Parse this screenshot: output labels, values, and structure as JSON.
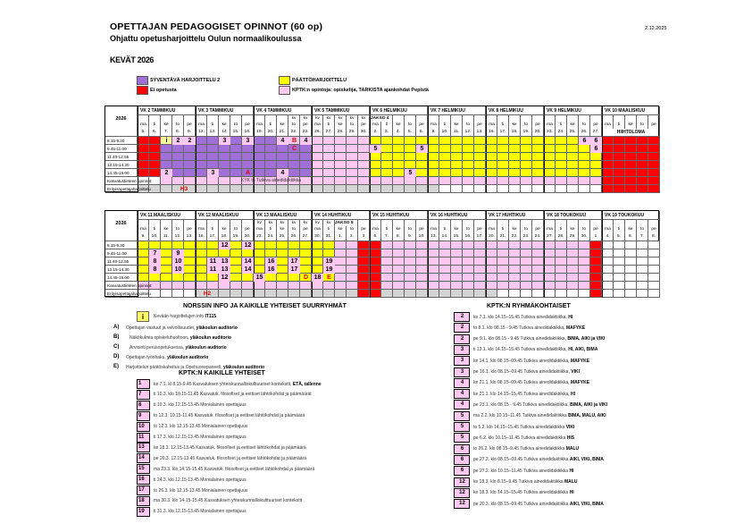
{
  "header": {
    "title": "OPETTAJAN PEDAGOGISET OPINNOT (60 op)",
    "subtitle": "Ohjattu opetusharjoittelu Oulun normaalikoulussa",
    "term": "KEVÄT 2026",
    "date": "2.12.2025"
  },
  "colors": {
    "r": "#ff0000",
    "p": "#a070d8",
    "y": "#ffff00",
    "Y": "#ffff99",
    "k": "#ffc8f0",
    "w": "#ffffff",
    "g": "#d4d4d4"
  },
  "legend": [
    {
      "color": "#a070d8",
      "label": "SYVENTÄVÄ HARJOITTELU 2"
    },
    {
      "color": "#ff0000",
      "label": "Ei opetusta"
    },
    {
      "color": "#ffff00",
      "label": "PÄÄTTÖHARJOITTELU"
    },
    {
      "color": "#ffc8f0",
      "label": "KPTK:n opintoja: opiskelija, TARKISTA ajankohdat Pepistä"
    }
  ],
  "times": [
    "8.15-9.30",
    "9.45-11.00",
    "11.40-12.55",
    "13.15-14.30",
    "14.45-16.00"
  ],
  "row_labels": [
    "Kasvatustieteen opinnot:",
    "Erityisopettajaharjoittelu"
  ],
  "calendars": [
    {
      "year": "2026",
      "weeks": [
        {
          "label": "VK 2 TAMMIKUU",
          "days": [
            "ma",
            "ti",
            "ke",
            "to",
            "pe"
          ],
          "dates": [
            "5.",
            "6.",
            "7.",
            "8.",
            "9."
          ],
          "kv": [
            "",
            "",
            "",
            "",
            ""
          ]
        },
        {
          "label": "VK 3 TAMMIKUU",
          "days": [
            "ma",
            "ti",
            "ke",
            "to",
            "pe"
          ],
          "dates": [
            "12.",
            "13.",
            "14",
            "15.",
            "16."
          ],
          "kv": [
            "",
            "",
            "",
            "",
            ""
          ]
        },
        {
          "label": "VK 4 TAMMIKUU",
          "days": [
            "ma",
            "ti",
            "ke",
            "to",
            "pe"
          ],
          "dates": [
            "19.",
            "20.",
            "21.",
            "22.",
            "23."
          ],
          "kv": [
            "",
            "",
            "",
            "kv",
            "kv"
          ]
        },
        {
          "label": "VK 5 TAMMIKUU",
          "days": [
            "ma",
            "ti",
            "ke",
            "to",
            "pe"
          ],
          "dates": [
            "26.",
            "27.",
            "28.",
            "29.",
            "30."
          ],
          "kv": [
            "kv",
            "kv",
            "kv",
            "kv",
            "kv"
          ]
        },
        {
          "label": "VK 6 HELMIKUU",
          "days": [
            "ma",
            "ti",
            "ke",
            "to",
            "pe"
          ],
          "dates": [
            "2.",
            "3.",
            "4.",
            "5.",
            "6."
          ],
          "kv": [
            "JAKSO 4",
            "",
            "",
            "",
            ""
          ]
        },
        {
          "label": "VK 7 HELMIKUU",
          "days": [
            "ma",
            "ti",
            "ke",
            "to",
            "pe"
          ],
          "dates": [
            "9.",
            "10.",
            "11.",
            "12.",
            "13."
          ],
          "kv": [
            "",
            "",
            "",
            "",
            ""
          ]
        },
        {
          "label": "VK 8 HELMIKUU",
          "days": [
            "ma",
            "ti",
            "ke",
            "to",
            "pe"
          ],
          "dates": [
            "16.",
            "17.",
            "18.",
            "19.",
            "20."
          ],
          "kv": [
            "",
            "",
            "",
            "",
            ""
          ]
        },
        {
          "label": "VK 9 HELMIKUU",
          "days": [
            "ma",
            "ti",
            "ke",
            "to",
            "pe"
          ],
          "dates": [
            "23.",
            "24.",
            "25.",
            "26.",
            "27."
          ],
          "kv": [
            "",
            "",
            "",
            "",
            ""
          ]
        },
        {
          "label": "VK 10 MAALISKUU",
          "days": [
            "ma",
            "ti",
            "ke",
            "to",
            "pe"
          ],
          "dates": [],
          "banner": "HIIHTOLOMA",
          "kv": [
            "",
            "",
            "",
            "",
            ""
          ]
        }
      ],
      "rows": [
        "rrYkkppkpkppkkkkkkkkyyyyyyyyyyyyyyyyyykkrrrrr",
        "rrpppppppppppppkkkkkkyyykyyyyyyyyyyyyyykrrrrr",
        "rrpppppppppppppkkkkkyyyyyyyyyyyyyyyyyyyyrrrrr",
        "rrpppppppppppppkkkkkyyyyyyyyyyyyyyyyyyyyrrrrr",
        "rrkpppkpppppkppkkkkkyyykyyyyyyyyyyyyyyyyrrrrr",
        "wwkkkkkkkkkkkkkkkkkkkkkkkkkkkkkkkkkkkkkkrrrrr",
        "ggggggggggggggggggggggggggwwwwwwwwwwwwwwrrrrr"
      ],
      "marks": [
        {
          "r": 0,
          "c": 2,
          "t": "i",
          "info": true
        },
        {
          "r": 0,
          "c": 3,
          "t": "2"
        },
        {
          "r": 0,
          "c": 4,
          "t": "2"
        },
        {
          "r": 0,
          "c": 7,
          "t": "3"
        },
        {
          "r": 0,
          "c": 9,
          "t": "3"
        },
        {
          "r": 0,
          "c": 12,
          "t": "4"
        },
        {
          "r": 0,
          "c": 13,
          "t": "B",
          "red": true
        },
        {
          "r": 0,
          "c": 14,
          "t": "4"
        },
        {
          "r": 0,
          "c": 38,
          "t": "6"
        },
        {
          "r": 0,
          "c": 39,
          "t": "6"
        },
        {
          "r": 1,
          "c": 13,
          "t": "C",
          "red": true
        },
        {
          "r": 1,
          "c": 20,
          "t": "5"
        },
        {
          "r": 1,
          "c": 24,
          "t": "5"
        },
        {
          "r": 1,
          "c": 39,
          "t": "6"
        },
        {
          "r": 4,
          "c": 2,
          "t": "2"
        },
        {
          "r": 4,
          "c": 6,
          "t": "3"
        },
        {
          "r": 4,
          "c": 9,
          "t": "A",
          "red": true
        },
        {
          "r": 4,
          "c": 12,
          "t": "4"
        },
        {
          "r": 4,
          "c": 23,
          "t": "5"
        }
      ],
      "spans": [
        {
          "r": 5,
          "c0": 3,
          "c1": 19,
          "t": "KYK ta Tutkiva ainedidaktiikka"
        },
        {
          "r": 6,
          "c0": 3,
          "c1": 4,
          "t": "H3",
          "red": true
        }
      ]
    },
    {
      "year": "2026",
      "weeks": [
        {
          "label": "VK 11 MAALISKUU",
          "days": [
            "ma",
            "ti",
            "ke",
            "to",
            "pe"
          ],
          "dates": [
            "9.",
            "10.",
            "11.",
            "12.",
            "13."
          ],
          "kv": [
            "",
            "",
            "",
            "",
            ""
          ]
        },
        {
          "label": "VK 12 MAALISKUU",
          "days": [
            "ma",
            "ti",
            "ke",
            "to",
            "pe"
          ],
          "dates": [
            "16.",
            "17.",
            "18.",
            "19.",
            "20."
          ],
          "kv": [
            "",
            "",
            "",
            "",
            ""
          ]
        },
        {
          "label": "VK 13 MAALISKUU",
          "days": [
            "ma",
            "ti",
            "ke",
            "to",
            "pe"
          ],
          "dates": [
            "23.",
            "24.",
            "25.",
            "26.",
            "27."
          ],
          "kv": [
            "kv",
            "kv",
            "kv",
            "kv",
            "kv"
          ]
        },
        {
          "label": "VK 14 HUHTIKUU",
          "days": [
            "ma",
            "ti",
            "ke",
            "to",
            "pe"
          ],
          "dates": [
            "30.",
            "31.",
            "1.",
            "2.",
            "3"
          ],
          "kv": [
            "kv",
            "kv",
            "JAKSO 5",
            "",
            ""
          ]
        },
        {
          "label": "VK 15 HUHTIKUU",
          "days": [
            "ma",
            "ti",
            "ke",
            "to",
            "pe"
          ],
          "dates": [
            "6.",
            "7.",
            "8.",
            "9.",
            "10."
          ],
          "kv": [
            "",
            "",
            "",
            "",
            ""
          ]
        },
        {
          "label": "VK 16 HUHTIKUU",
          "days": [
            "ma",
            "ti",
            "ke",
            "to",
            "pe"
          ],
          "dates": [
            "13.",
            "14.",
            "15.",
            "16.",
            "17."
          ],
          "kv": [
            "",
            "",
            "",
            "",
            ""
          ]
        },
        {
          "label": "VK 17 HUHTIKUU",
          "days": [
            "ma",
            "ti",
            "ke",
            "to",
            "pe"
          ],
          "dates": [
            "20.",
            "21.",
            "22.",
            "23.",
            "24."
          ],
          "kv": [
            "",
            "",
            "",
            "",
            ""
          ]
        },
        {
          "label": "VK 18 TOUKOKUU",
          "days": [
            "ma",
            "ti",
            "ke",
            "to",
            "pe"
          ],
          "dates": [
            "27.",
            "28.",
            "29.",
            "30.",
            "1"
          ],
          "kv": [
            "",
            "",
            "",
            "",
            ""
          ]
        },
        {
          "label": "VK 19 TOUKOKUU",
          "days": [
            "ma",
            "ti",
            "ke",
            "to",
            "pe"
          ],
          "dates": [
            "4.",
            "5.",
            "6.",
            "7.",
            "8."
          ],
          "kv": [
            "",
            "",
            "",
            "",
            ""
          ]
        }
      ],
      "rows": [
        "yyyyyyykykyyyyyyykkrrkkkkkkkkkkkkkkkkkkrwwwww",
        "ykykyyyyyyyyyyyyykkrrkkkkkkkkkkkkkkkkkkrwwwww",
        "ykykyykkykykykyykkkrrkkkkkkkkkkkkkkkkkkrwwwww",
        "ykykyykkykykykyykkkrrkkkkkkkkkkkkkkkkkkrwwwww",
        "yyyyyyykyykyyyykykkrrkkkkkkkkkkkkkkkkkkrwwwww",
        "kkkkkkkkkkkkkkkkkkkrrkkkkkkkkkkkkkkkkkkrwwwww",
        "wwwwwggggggggggggggrrggggggggggwwwwwwwwrwwwww"
      ],
      "marks": [
        {
          "r": 0,
          "c": 7,
          "t": "12"
        },
        {
          "r": 0,
          "c": 9,
          "t": "12"
        },
        {
          "r": 1,
          "c": 1,
          "t": "7"
        },
        {
          "r": 1,
          "c": 3,
          "t": "9"
        },
        {
          "r": 2,
          "c": 1,
          "t": "8"
        },
        {
          "r": 2,
          "c": 3,
          "t": "10"
        },
        {
          "r": 2,
          "c": 6,
          "t": "11"
        },
        {
          "r": 2,
          "c": 7,
          "t": "13"
        },
        {
          "r": 2,
          "c": 9,
          "t": "14"
        },
        {
          "r": 2,
          "c": 11,
          "t": "16"
        },
        {
          "r": 2,
          "c": 13,
          "t": "17"
        },
        {
          "r": 2,
          "c": 16,
          "t": "19"
        },
        {
          "r": 3,
          "c": 1,
          "t": "8"
        },
        {
          "r": 3,
          "c": 3,
          "t": "10"
        },
        {
          "r": 3,
          "c": 6,
          "t": "11"
        },
        {
          "r": 3,
          "c": 7,
          "t": "13"
        },
        {
          "r": 3,
          "c": 9,
          "t": "14"
        },
        {
          "r": 3,
          "c": 11,
          "t": "16"
        },
        {
          "r": 3,
          "c": 13,
          "t": "17"
        },
        {
          "r": 3,
          "c": 16,
          "t": "19"
        },
        {
          "r": 4,
          "c": 7,
          "t": "12"
        },
        {
          "r": 4,
          "c": 10,
          "t": "15"
        },
        {
          "r": 4,
          "c": 14,
          "t": "D",
          "red": true
        },
        {
          "r": 4,
          "c": 15,
          "t": "18"
        },
        {
          "r": 4,
          "c": 16,
          "t": "E",
          "red": true
        }
      ],
      "spans": [
        {
          "r": 6,
          "c0": 5,
          "c1": 6,
          "t": "H2",
          "red": true
        }
      ]
    }
  ],
  "info": {
    "title": "NORSSIN INFO JA KAIKILLE YHTEISET SUURRYHMÄT",
    "info_icon": "info-icon",
    "info_text": "Kevään harjoittelujen info ",
    "info_bold": "IT115",
    "items": [
      {
        "letter": "A)",
        "text": "Opettajan vastuut ja velvollisuudet, ",
        "bold": "yläkoulun auditorio"
      },
      {
        "letter": "B)",
        "text": "Näkökulmia opiskeluhuoltoon, ",
        "bold": "yläkoulun auditorio"
      },
      {
        "letter": "C)",
        "text": "Arviointi perusopetuksessa, ",
        "bold": "yläkoulun auditorio"
      },
      {
        "letter": "D)",
        "text": "Opettajan työnhaku, ",
        "bold": "yläkoulun auditorio"
      },
      {
        "letter": "E)",
        "text": "Harjoittelun päätöskahvitus ja Opehuonepaneeli, ",
        "bold": "yläkoulun auditorio"
      }
    ]
  },
  "common": {
    "title": "KPTK:N KAIKILLE YHTEISET",
    "items": [
      {
        "n": "1",
        "text": "ke 7.1. kl 8.15-9.45 Kasvatuksen yhteiskunnalliskulttuuriset kontekstit, ",
        "bold": "ETÄ, tallenne"
      },
      {
        "n": "7",
        "text": "ti 10.3. klo 10.15-11.45 Kasvatuk. filosofiset ja eettiset lähtökohdat ja päämäärät",
        "bold": ""
      },
      {
        "n": "8",
        "text": "ti 10.3. klo 12.15-13.45  Monialainen opettajuus",
        "bold": ""
      },
      {
        "n": "9",
        "text": "to 12.3. 10.15-11.45 Kasvatuk. filosofiset ja eettiset lähtökohdat ja päämäärä",
        "bold": ""
      },
      {
        "n": "10",
        "text": "to 12.3. klo 12.15-13.45  Monialainen opettajuus",
        "bold": ""
      },
      {
        "n": "11",
        "text": "ti 17.3. klo 12.15-13.45  Monialainen opettajuus",
        "bold": ""
      },
      {
        "n": "13",
        "text": "ke 18.3. 12.15-13.45 Kasvatuk. filosofiset ja eettiset lähtökohdat ja päämäärä",
        "bold": ""
      },
      {
        "n": "14",
        "text": "pe 20.3. 12.15-13.45 Kasvatuk. filosofiset ja eettiset lähtökohdat ja päämäärä",
        "bold": ""
      },
      {
        "n": "15",
        "text": "ma 23.3. klo 14.15-15.45 Kasvatuk. filosofiset ja eettiset lähtökohdat ja päämäärä",
        "bold": ""
      },
      {
        "n": "16",
        "text": "ti 24.3. klo 12.15-13.45  Monialainen opettajuus",
        "bold": ""
      },
      {
        "n": "17",
        "text": "to 26.3. klo 12.15-13.45  Monialainen opettajuus",
        "bold": ""
      },
      {
        "n": "18",
        "text": "ma 30.3. klo 14-15-15.45 Kasvatuksen yhteiskunnalliskulttuuriset kontekstit",
        "bold": ""
      },
      {
        "n": "19",
        "text": "ti 31.3. klo 12.15-13.45  Monialainen opettajuus",
        "bold": ""
      }
    ]
  },
  "group": {
    "title": "KPTK:N RYHMÄKOHTAISET",
    "items": [
      {
        "n": "2",
        "text": "ke 7.1. klo 14.15–15.45 Tutkiva ainedidaktiikka, ",
        "bold": "HI"
      },
      {
        "n": "2",
        "text": "to 8.1. klo 08.15 - 9.45 Tutkiva ainedidaktiikka, ",
        "bold": "MAFYKE"
      },
      {
        "n": "2",
        "text": "pe 9.1. klo 08.15 - 9.45 Tutkiva ainedidaktiikka, ",
        "bold": "BIMA, AIKI ja VIKI"
      },
      {
        "n": "3",
        "text": "ti 13.1. klo 14.15–15.45 Tutkiva ainedidaktiikka, ",
        "bold": "HI, AIKI, BIMA"
      },
      {
        "n": "3",
        "text": "ke 14.1. klo 08.15–09.45 Tutkiva ainedidaktiikka, ",
        "bold": "MAFYKE"
      },
      {
        "n": "3",
        "text": "pe 16.1. klo 08.15–09.45 Tutkiva ainedidaktiikka, ",
        "bold": "VIKI"
      },
      {
        "n": "4",
        "text": "ke 21.1. klo 08.15–09.45 Tutkiva ainedidaktiikka, ",
        "bold": "MAFYKE"
      },
      {
        "n": "4",
        "text": "ke 21.1. klo 14.15–15.45 Tutkiva ainedidaktiikka, ",
        "bold": "HI"
      },
      {
        "n": "4",
        "text": "pe 23.1. klo 08.15 - 9.45 Tutkiva ainedidaktiikka, ",
        "bold": "BIMA, AIKI ja VIKI"
      },
      {
        "n": "5",
        "text": "ma 2.2. klo 10.15–11.45 Tutkiva ainedidaktiikka ",
        "bold": "BIMA, MALU, AIKI"
      },
      {
        "n": "5",
        "text": "to 5.2. klo 14.15–15.45 Tutkiva ainedidaktiikka ",
        "bold": "VIKI"
      },
      {
        "n": "5",
        "text": "pe 6.2. klo 10.15–11.45 Tutkiva ainedidaktiikka ",
        "bold": "HIS"
      },
      {
        "n": "6",
        "text": "to 26.2. klo 08.15–9.45 Tutkiva ainedidaktiikka ",
        "bold": "MALU"
      },
      {
        "n": "6",
        "text": "pe 27.2. klo 08.15–09.45 Tutkiva ainedidaktiikka ",
        "bold": "AIKI, VIKI, BIMA"
      },
      {
        "n": "6",
        "text": "pe 27.2. klo 10.15–11.45 Tutkiva ainedidaktiikka ",
        "bold": "HI"
      },
      {
        "n": "12",
        "text": "ke 18.3. klo 8.15–9.45 Tutkiva ainedidaktiikka ",
        "bold": "MALU"
      },
      {
        "n": "12",
        "text": "ke 18.3. klo 14.15–15.45 Tutkiva ainedidaktiikka ",
        "bold": "HI"
      },
      {
        "n": "12",
        "text": "pe 20.3. klo 08.15–09.45 Tutkiva ainedidaktiikka ",
        "bold": "AIKI, VIKI, BIMA"
      }
    ]
  }
}
